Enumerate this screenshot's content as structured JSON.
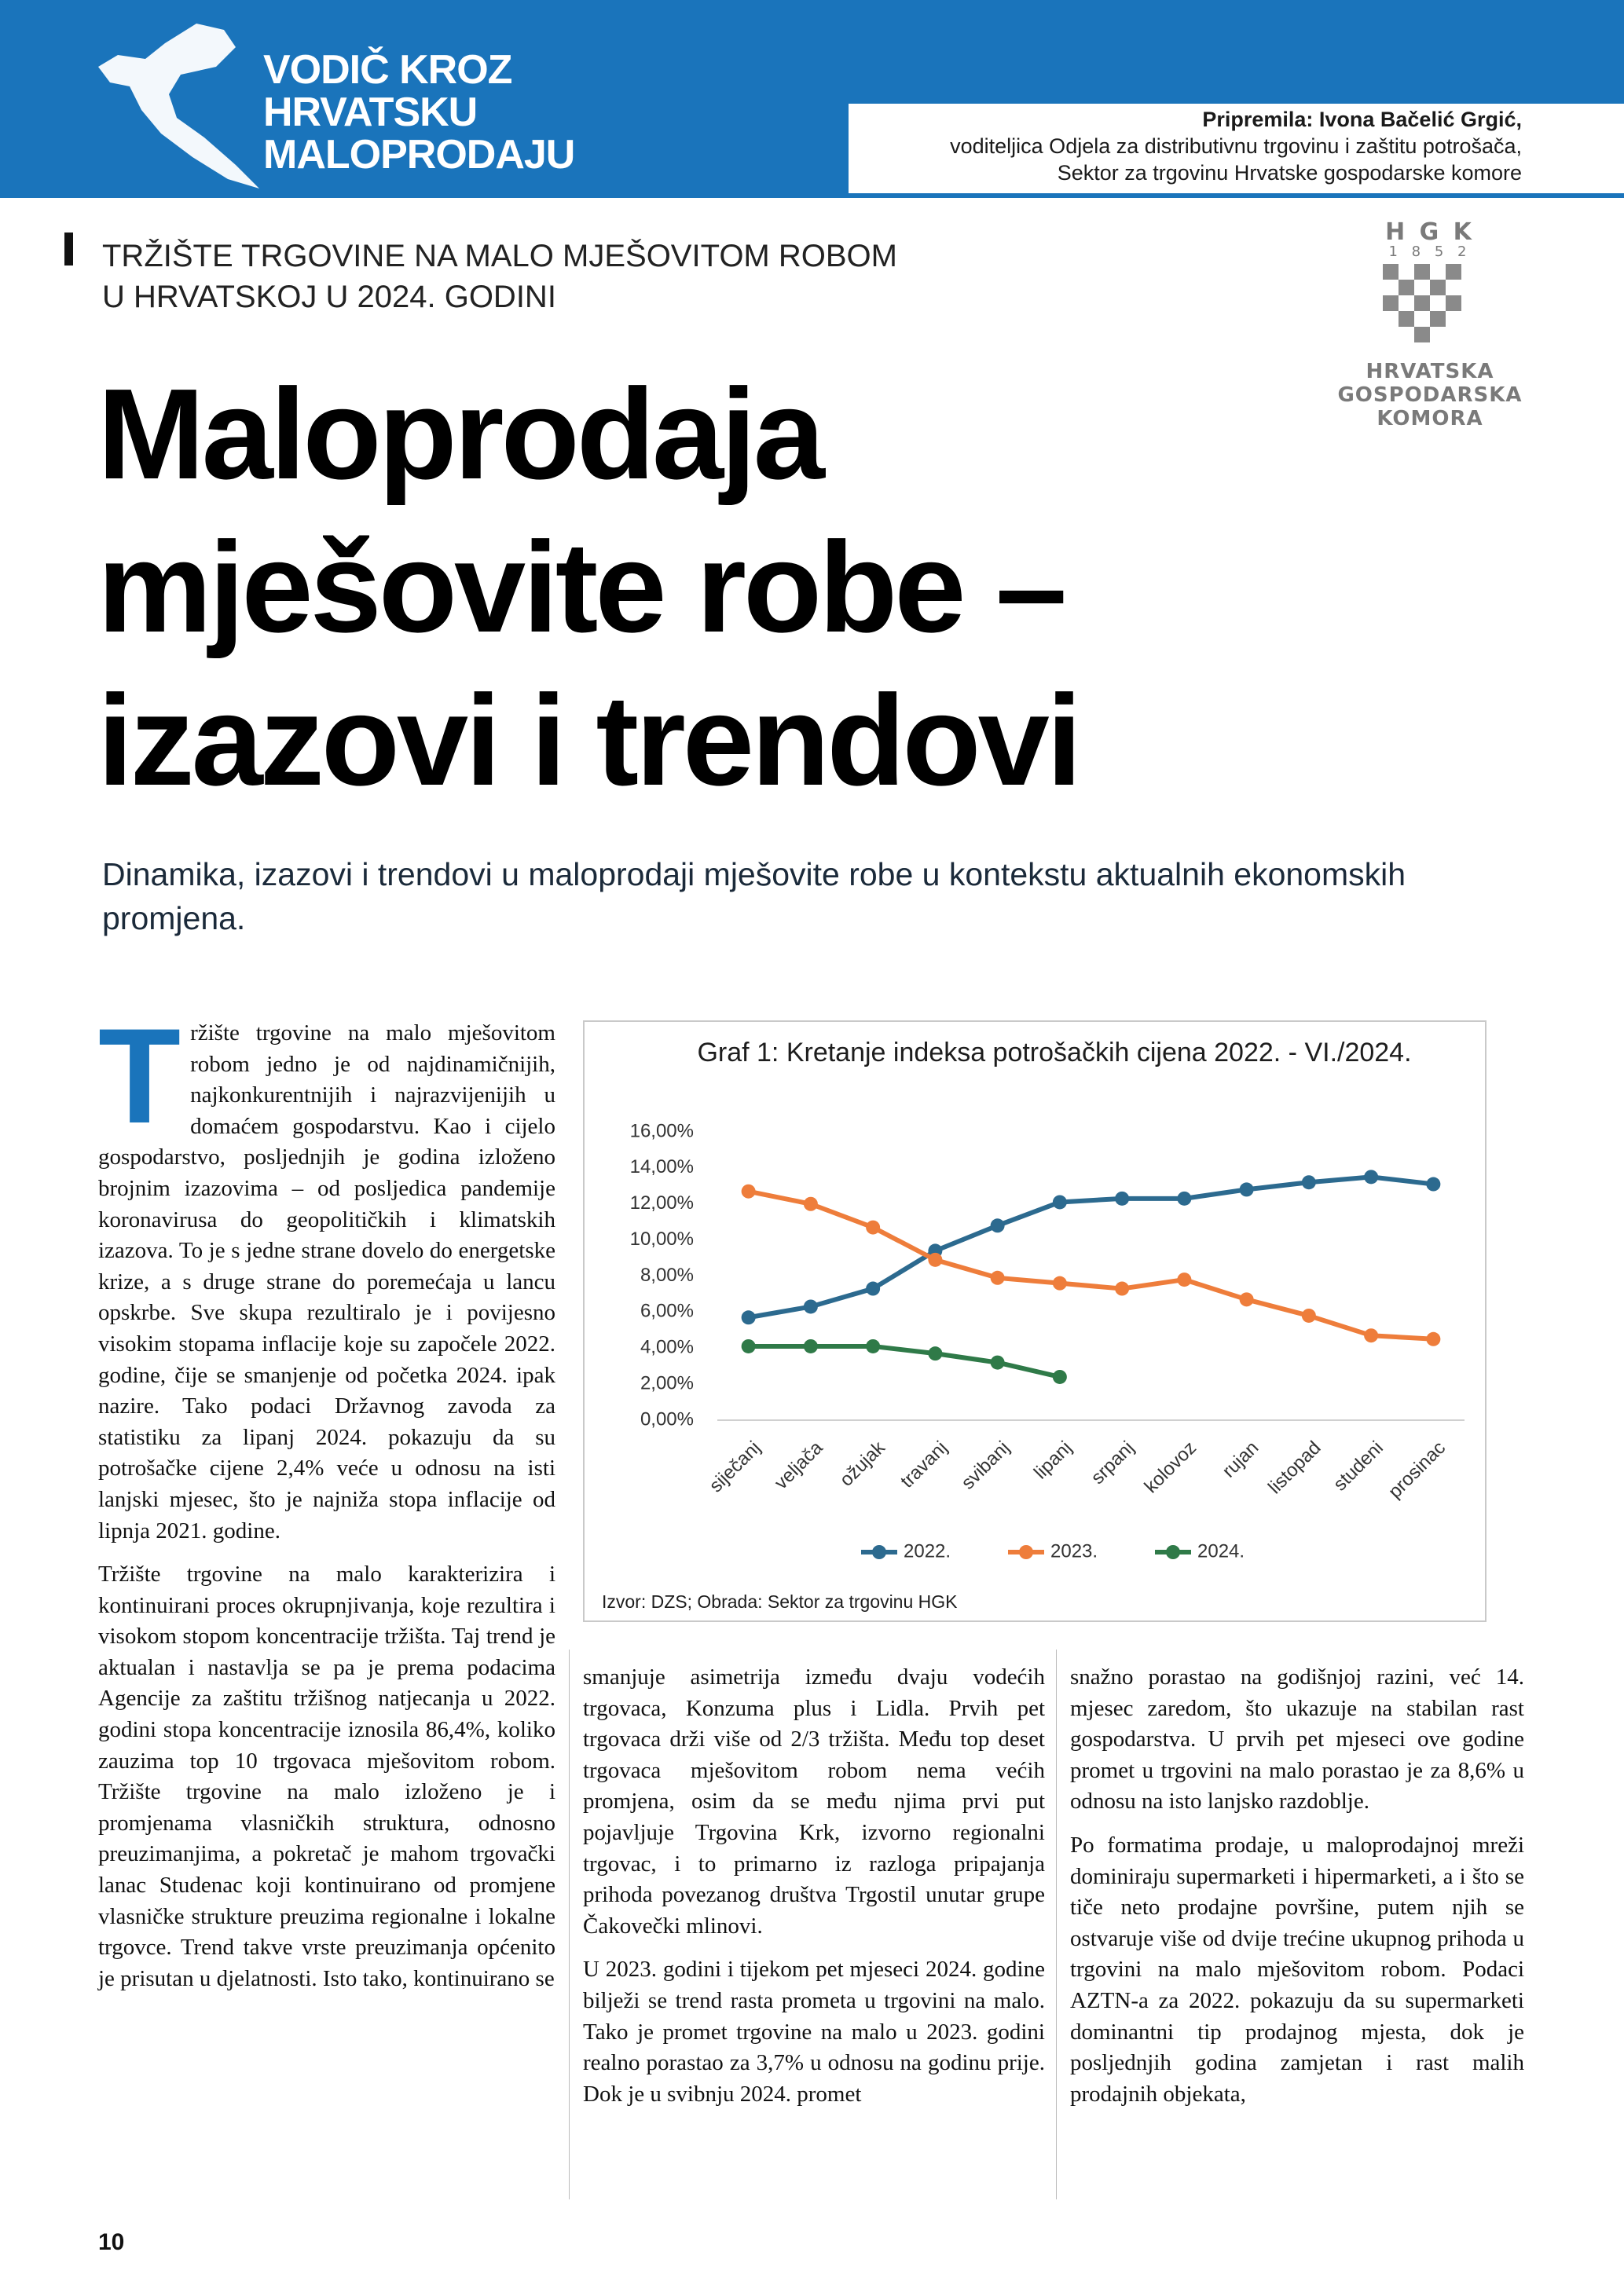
{
  "header": {
    "logo_text": [
      "VODIČ KROZ",
      "HRVATSKU",
      "MALOPRODAJU"
    ],
    "author": "Pripremila: Ivona Bačelić Grgić,",
    "author_role": [
      "voditeljica Odjela za distributivnu trgovinu i zaštitu potrošača,",
      "Sektor za trgovinu Hrvatske gospodarske komore"
    ]
  },
  "hgk_logo": {
    "letters": "H G K",
    "year": "1 8 5 2",
    "name": [
      "HRVATSKA",
      "GOSPODARSKA",
      "KOMORA"
    ]
  },
  "kicker": [
    "TRŽIŠTE TRGOVINE NA MALO MJEŠOVITOM ROBOM",
    "U HRVATSKOJ U 2024. GODINI"
  ],
  "title": [
    "Maloprodaja",
    "mješovite robe –",
    "izazovi i trendovi"
  ],
  "lead": "Dinamika, izazovi i trendovi u maloprodaji mješovite robe u kontekstu aktualnih ekonomskih promjena.",
  "body": {
    "drop_cap": "T",
    "col1": [
      "ržište trgovine na malo mješovitom robom jedno je od najdinamičnijih, najkonkurentnijih i najrazvijenijih u domaćem gospodarstvu. Kao i cijelo gospodarstvo, posljednjih je godina izloženo brojnim izazovima – od posljedica pandemije koronavirusa do geopolitičkih i klimatskih izazova. To je s jedne strane dovelo do energetske krize, a s druge strane do poremećaja u lancu opskrbe. Sve skupa rezultiralo je i povijesno visokim stopama inflacije koje su započele 2022. godine, čije se smanjenje od početka 2024. ipak nazire. Tako podaci Državnog zavoda za statistiku za lipanj 2024. pokazuju da su potrošačke cijene 2,4% veće u odnosu na isti lanjski mjesec, što je najniža stopa inflacije od lipnja 2021. godine.",
      "Tržište trgovine na malo karakterizira i kontinuirani proces okrupnjivanja, koje rezultira i visokom stopom koncentracije tržišta. Taj trend je aktualan i nastavlja se pa je prema podacima Agencije za zaštitu tržišnog natjecanja u 2022. godini stopa koncentracije iznosila 86,4%, koliko zauzima top 10 trgovaca mješovitom robom. Tržište trgovine na malo izloženo je i promjenama vlasničkih struktura, odnosno preuzimanjima, a pokretač je mahom trgovački lanac Studenac koji kontinuirano od promjene vlasničke strukture preuzima regionalne i lokalne trgovce. Trend takve vrste preuzimanja općenito je prisutan u djelatnosti. Isto tako, kontinuirano se"
    ],
    "col2": [
      "smanjuje asimetrija između dvaju vodećih trgovaca, Konzuma plus i Lidla. Prvih pet trgovaca drži više od 2/3 tržišta. Među top deset trgovaca mješovitom robom nema većih promjena, osim da se među njima prvi put pojavljuje Trgovina Krk, izvorno regionalni trgovac, i to primarno iz razloga pripajanja prihoda povezanog društva Trgostil unutar grupe Čakovečki mlinovi.",
      "U 2023. godini i tijekom pet mjeseci 2024. godine bilježi se trend rasta prometa u trgovini na malo. Tako je promet trgovine na malo u 2023. godini realno porastao za 3,7% u odnosu na godinu prije. Dok je u svibnju 2024. promet"
    ],
    "col3": [
      "snažno porastao na godišnjoj razini, već 14. mjesec zaredom, što ukazuje na stabilan rast gospodarstva. U prvih pet mjeseci ove godine promet u trgovini na malo porastao je za 8,6% u odnosu na isto lanjsko razdoblje.",
      "Po formatima prodaje, u maloprodajnoj mreži dominiraju supermarketi i hipermarketi, a i što se tiče neto prodajne površine, putem njih se ostvaruje više od dvije trećine ukupnog prihoda u trgovini na malo mješovitom robom. Podaci AZTN-a za 2022. pokazuju da su supermarketi dominantni tip prodajnog mjesta, dok je posljednjih godina zamjetan i rast malih prodajnih objekata,"
    ]
  },
  "chart_data": {
    "type": "line",
    "title": "Graf 1: Kretanje indeksa potrošačkih cijena 2022. - VI./2024.",
    "source": "Izvor: DZS; Obrada: Sektor za trgovinu HGK",
    "categories": [
      "siječanj",
      "veljača",
      "ožujak",
      "travanj",
      "svibanj",
      "lipanj",
      "srpanj",
      "kolovoz",
      "rujan",
      "listopad",
      "studeni",
      "prosinac"
    ],
    "series": [
      {
        "name": "2022.",
        "color": "#2c6a8f",
        "values": [
          5.7,
          6.3,
          7.3,
          9.4,
          10.8,
          12.1,
          12.3,
          12.3,
          12.8,
          13.2,
          13.5,
          13.1
        ]
      },
      {
        "name": "2023.",
        "color": "#ee7d3b",
        "values": [
          12.7,
          12.0,
          10.7,
          8.9,
          7.9,
          7.6,
          7.3,
          7.8,
          6.7,
          5.8,
          4.7,
          4.5
        ]
      },
      {
        "name": "2024.",
        "color": "#2f7a48",
        "values": [
          4.1,
          4.1,
          4.1,
          3.7,
          3.2,
          2.4,
          null,
          null,
          null,
          null,
          null,
          null
        ]
      }
    ],
    "ylim": [
      0,
      16
    ],
    "yticks": [
      {
        "value": 0,
        "label": "0,00%"
      },
      {
        "value": 2,
        "label": "2,00%"
      },
      {
        "value": 4,
        "label": "4,00%"
      },
      {
        "value": 6,
        "label": "6,00%"
      },
      {
        "value": 8,
        "label": "8,00%"
      },
      {
        "value": 10,
        "label": "10,00%"
      },
      {
        "value": 12,
        "label": "12,00%"
      },
      {
        "value": 14,
        "label": "14,00%"
      },
      {
        "value": 16,
        "label": "16,00%"
      }
    ],
    "grid": false,
    "legend": "bottom"
  },
  "page_number": "10"
}
